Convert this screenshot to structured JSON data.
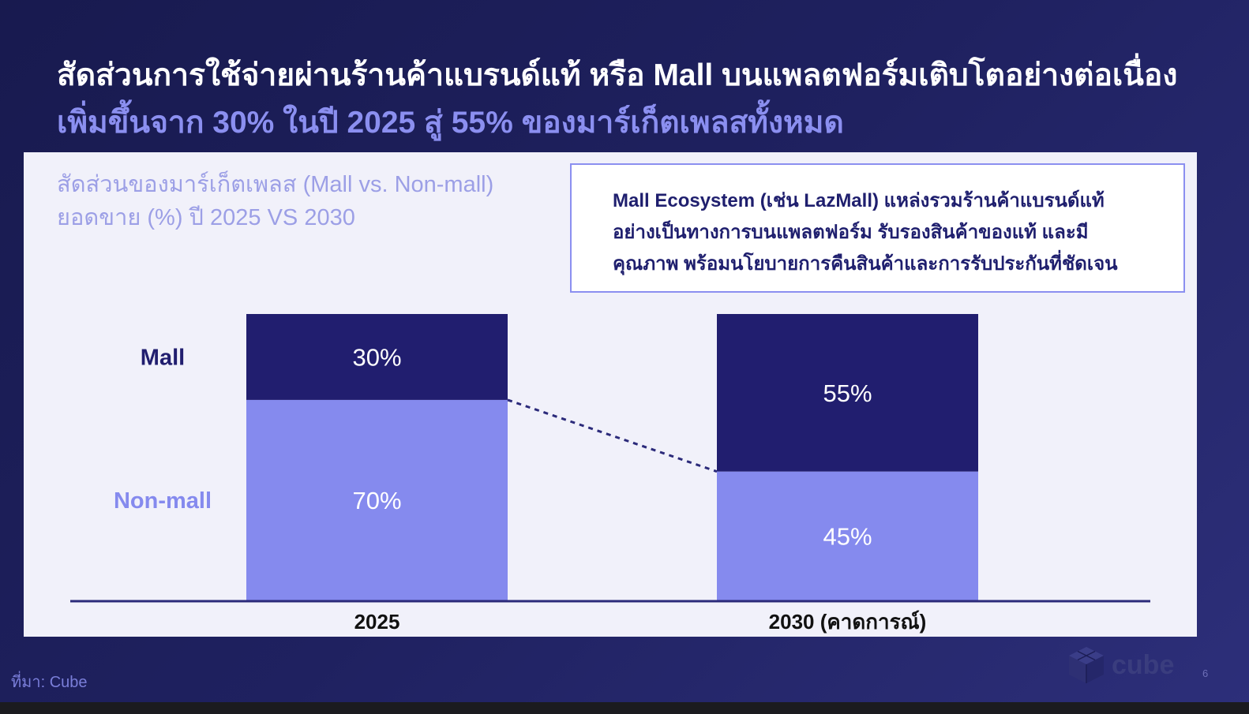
{
  "title": {
    "line1": "สัดส่วนการใช้จ่ายผ่านร้านค้าแบรนด์แท้ หรือ Mall บนแพลตฟอร์มเติบโตอย่างต่อเนื่อง",
    "line2": "เพิ่มขึ้นจาก 30% ในปี 2025 สู่ 55% ของมาร์เก็ตเพลสทั้งหมด"
  },
  "subtitle": {
    "line1": "สัดส่วนของมาร์เก็ตเพลส (Mall vs. Non-mall)",
    "line2": "ยอดขาย (%) ปี 2025 VS 2030"
  },
  "info": {
    "line1": "Mall Ecosystem (เช่น LazMall) แหล่งรวมร้านค้าแบรนด์แท้",
    "line2": "อย่างเป็นทางการบนแพลตฟอร์ม รับรองสินค้าของแท้ และมี",
    "line3": "คุณภาพ พร้อมนโยบายการคืนสินค้าและการรับประกันที่ชัดเจน"
  },
  "chart_data": {
    "type": "bar",
    "stacked": true,
    "categories": [
      "2025",
      "2030 (คาดการณ์)"
    ],
    "series": [
      {
        "name": "Non-mall",
        "values": [
          70,
          45
        ],
        "labels": [
          "70%",
          "45%"
        ],
        "color": "#858aee"
      },
      {
        "name": "Mall",
        "values": [
          30,
          55
        ],
        "labels": [
          "30%",
          "55%"
        ],
        "color": "#211e6f"
      }
    ],
    "ylim": [
      0,
      100
    ],
    "legend_position": "left",
    "connector": "dashed line from top of Non-mall 2025 to top of Non-mall 2030",
    "grid": false
  },
  "footer": {
    "source": "ที่มา: Cube",
    "logo": "cube",
    "page": "6"
  },
  "colors": {
    "mall": "#211e6f",
    "non_mall": "#858aee",
    "title_accent": "#8b8ff0"
  }
}
